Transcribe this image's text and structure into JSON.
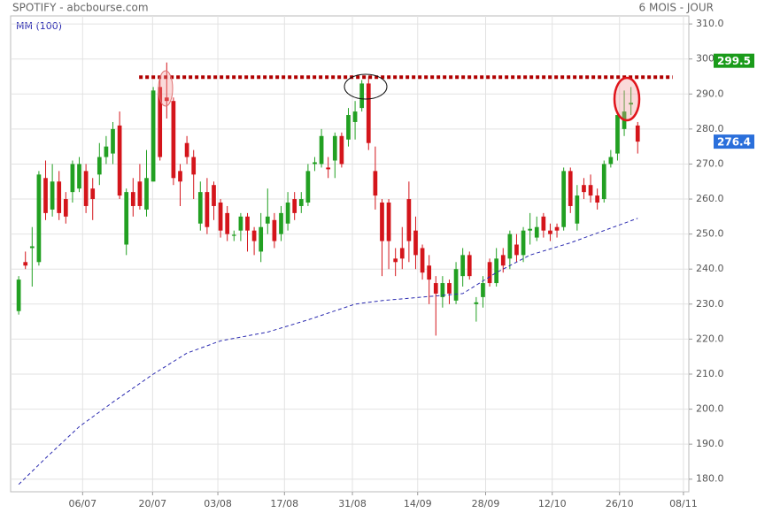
{
  "chart_data": {
    "type": "candlestick",
    "title": "SPOTIFY - abcbourse.com",
    "subtitle": "6 MOIS - JOUR",
    "up_color": "#22a022",
    "down_color": "#d4151b",
    "open": [
      228,
      242,
      246,
      242,
      266,
      257,
      265,
      260,
      262,
      263,
      268,
      263,
      267,
      272,
      273,
      281,
      247,
      262,
      265,
      257,
      265,
      292,
      289,
      288,
      268,
      276,
      272,
      253,
      262,
      264,
      259,
      256,
      249.5,
      251,
      255,
      251,
      245,
      253,
      254,
      250,
      253,
      260,
      258,
      259,
      270,
      270,
      269,
      271,
      278,
      277,
      282,
      286,
      293,
      268,
      259,
      259,
      243,
      246,
      260,
      251,
      246,
      241,
      236,
      232,
      236,
      231,
      238,
      244,
      230,
      232,
      242,
      236,
      244,
      243,
      247,
      244,
      251,
      249,
      255,
      251,
      252,
      252,
      268,
      253,
      264,
      264,
      261,
      260,
      270,
      273,
      280,
      287,
      281
    ],
    "high": [
      238,
      245,
      252,
      268,
      271,
      270,
      268,
      262,
      271,
      272,
      270,
      266,
      276,
      278,
      282,
      285,
      263,
      266,
      270,
      274,
      292,
      295,
      299,
      289,
      270,
      278,
      274,
      265,
      266,
      265,
      260,
      258,
      251,
      256,
      256,
      252,
      256,
      263,
      256,
      258,
      262,
      262,
      262,
      270,
      272,
      280,
      272,
      279,
      279,
      286,
      288,
      294,
      295,
      275,
      260,
      260,
      246,
      252,
      265,
      255,
      247,
      244,
      238,
      238,
      237,
      242,
      246,
      245,
      232,
      238,
      243,
      246,
      246,
      251,
      250,
      252,
      256,
      255,
      256,
      253,
      253,
      269,
      269,
      264,
      266,
      267,
      263,
      271,
      274,
      285,
      291,
      292,
      282
    ],
    "low": [
      227,
      240,
      235,
      241,
      254,
      255,
      254,
      253,
      259,
      262,
      256,
      254,
      264,
      270,
      270,
      260,
      244,
      255,
      257,
      255,
      265,
      271,
      283,
      264,
      258,
      270,
      260,
      251,
      250,
      254,
      249,
      248,
      248,
      248,
      245,
      244,
      242,
      250,
      246,
      248,
      251,
      254,
      256,
      258,
      268,
      269,
      266,
      266,
      269,
      275,
      277,
      285,
      274,
      257,
      238,
      240,
      238,
      240,
      242,
      240,
      237,
      230,
      221,
      229,
      230,
      230,
      235,
      237,
      225,
      229,
      235,
      235,
      239,
      240,
      242,
      242,
      247,
      248,
      249,
      248,
      249,
      251,
      256,
      251,
      260,
      259,
      257,
      259,
      269,
      271,
      278,
      284,
      273
    ],
    "close": [
      237,
      241,
      246.5,
      267,
      256,
      265,
      256,
      255,
      270,
      270,
      258,
      260,
      272,
      275,
      280,
      261,
      262,
      258,
      258,
      266,
      291,
      272,
      288,
      266,
      265,
      272,
      267,
      262,
      252,
      258,
      251,
      250,
      249.8,
      255,
      251,
      248,
      252,
      255,
      248,
      256,
      259,
      256,
      260,
      268,
      270.5,
      278,
      268.5,
      278,
      270,
      284,
      285,
      293,
      276,
      261,
      248,
      248,
      242,
      243,
      248,
      244,
      239,
      237,
      233,
      236,
      233,
      240,
      244,
      238,
      230.5,
      236,
      236,
      243,
      241,
      250,
      244,
      251,
      251.5,
      252,
      251,
      250,
      251,
      268,
      258,
      261,
      262,
      261,
      259,
      270,
      272,
      284,
      285,
      287.5,
      276.4
    ],
    "ma": {
      "name": "MM (100)",
      "color": "#2a2ab0",
      "x": [
        0,
        4,
        9,
        14,
        20,
        25,
        30,
        37,
        43,
        50,
        54,
        60,
        66,
        71,
        76,
        82,
        87,
        92
      ],
      "values": [
        178.5,
        186,
        195,
        202,
        210,
        216,
        219.5,
        222,
        225.5,
        230,
        231,
        232,
        233,
        239,
        244,
        247.5,
        251,
        254.5
      ]
    },
    "resistance": {
      "value": 294.8,
      "color": "#b00000",
      "x": [
        17.9,
        97.2
      ]
    },
    "alert_price": 299.5,
    "alert_color": "#1a9b1a",
    "last_color": "#2a6fdb",
    "xlim": [
      -1.2,
      99.6
    ],
    "xticks": [
      {
        "value": 9.5,
        "label": "06/07"
      },
      {
        "value": 19.9,
        "label": "20/07"
      },
      {
        "value": 29.6,
        "label": "03/08"
      },
      {
        "value": 39.5,
        "label": "17/08"
      },
      {
        "value": 49.6,
        "label": "31/08"
      },
      {
        "value": 59.3,
        "label": "14/09"
      },
      {
        "value": 69.4,
        "label": "28/09"
      },
      {
        "value": 79.3,
        "label": "12/10"
      },
      {
        "value": 89.3,
        "label": "26/10"
      },
      {
        "value": 98.8,
        "label": "08/11"
      }
    ],
    "ylim": [
      176.4,
      312.3
    ],
    "yticks": [
      {
        "value": 180,
        "label": "180.0"
      },
      {
        "value": 190,
        "label": "190.0"
      },
      {
        "value": 200,
        "label": "200.0"
      },
      {
        "value": 210,
        "label": "210.0"
      },
      {
        "value": 220,
        "label": "220.0"
      },
      {
        "value": 230,
        "label": "230.0"
      },
      {
        "value": 240,
        "label": "240.0"
      },
      {
        "value": 250,
        "label": "250.0"
      },
      {
        "value": 260,
        "label": "260.0"
      },
      {
        "value": 270,
        "label": "270.0"
      },
      {
        "value": 280,
        "label": "280.0"
      },
      {
        "value": 290,
        "label": "290.0"
      },
      {
        "value": 300,
        "label": "300.0"
      },
      {
        "value": 310,
        "label": "310.0"
      }
    ],
    "grid": true
  }
}
